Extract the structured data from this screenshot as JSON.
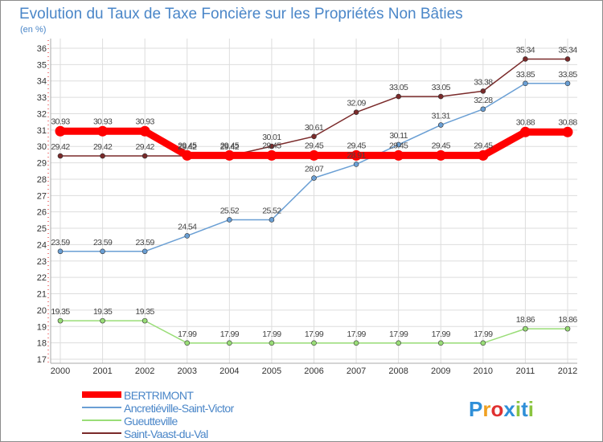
{
  "chart_data": {
    "type": "line",
    "title": "Evolution du Taux de Taxe Foncière sur les Propriétés Non Bâties",
    "ylabel": "(en %)",
    "xlabel": "",
    "categories": [
      "2000",
      "2001",
      "2002",
      "2003",
      "2004",
      "2005",
      "2006",
      "2007",
      "2008",
      "2009",
      "2010",
      "2011",
      "2012"
    ],
    "ylim": [
      17,
      36
    ],
    "yticks": [
      17,
      18,
      19,
      20,
      21,
      22,
      23,
      24,
      25,
      26,
      27,
      28,
      29,
      30,
      31,
      32,
      33,
      34,
      35,
      36
    ],
    "grid": true,
    "series": [
      {
        "name": "Saint-Vaast-du-Val",
        "color": "#7a2a2a",
        "values": [
          29.42,
          29.42,
          29.42,
          29.42,
          29.42,
          30.01,
          30.61,
          32.09,
          33.05,
          33.05,
          33.38,
          35.34,
          35.34
        ],
        "labels": [
          "29.42",
          "29.42",
          "29.42",
          "29.42",
          "29.42",
          "30.01",
          "30.61",
          "32.09",
          "33.05",
          "33.05",
          "33.38",
          "35.34",
          "35.34"
        ]
      },
      {
        "name": "Ancretiéville-Saint-Victor",
        "color": "#6a9fd4",
        "values": [
          23.59,
          23.59,
          23.59,
          24.54,
          25.52,
          25.52,
          28.07,
          28.91,
          30.11,
          31.31,
          32.28,
          33.85,
          33.85
        ],
        "labels": [
          "23.59",
          "23.59",
          "23.59",
          "24.54",
          "25.52",
          "25.52",
          "28.07",
          "28.91",
          "30.11",
          "31.31",
          "32.28",
          "33.85",
          "33.85"
        ]
      },
      {
        "name": "Gueutteville",
        "color": "#99dd77",
        "values": [
          19.35,
          19.35,
          19.35,
          17.99,
          17.99,
          17.99,
          17.99,
          17.99,
          17.99,
          17.99,
          17.99,
          18.86,
          18.86
        ],
        "labels": [
          "19.35",
          "19.35",
          "19.35",
          "17.99",
          "17.99",
          "17.99",
          "17.99",
          "17.99",
          "17.99",
          "17.99",
          "17.99",
          "18.86",
          "18.86"
        ]
      },
      {
        "name": "BERTRIMONT",
        "color": "#ff0000",
        "values": [
          30.93,
          30.93,
          30.93,
          29.45,
          29.45,
          29.45,
          29.45,
          29.45,
          29.45,
          29.45,
          29.45,
          30.88,
          30.88
        ],
        "labels": [
          "30.93",
          "30.93",
          "30.93",
          "29.45",
          "29.45",
          "29.45",
          "29.45",
          "29.45",
          "29.45",
          "29.45",
          "29.45",
          "30.88",
          "30.88"
        ]
      }
    ],
    "legend": {
      "position": "bottom-left",
      "entries": [
        "BERTRIMONT",
        "Ancretiéville-Saint-Victor",
        "Gueutteville",
        "Saint-Vaast-du-Val"
      ]
    }
  },
  "logo": {
    "text": "Proxiti"
  }
}
